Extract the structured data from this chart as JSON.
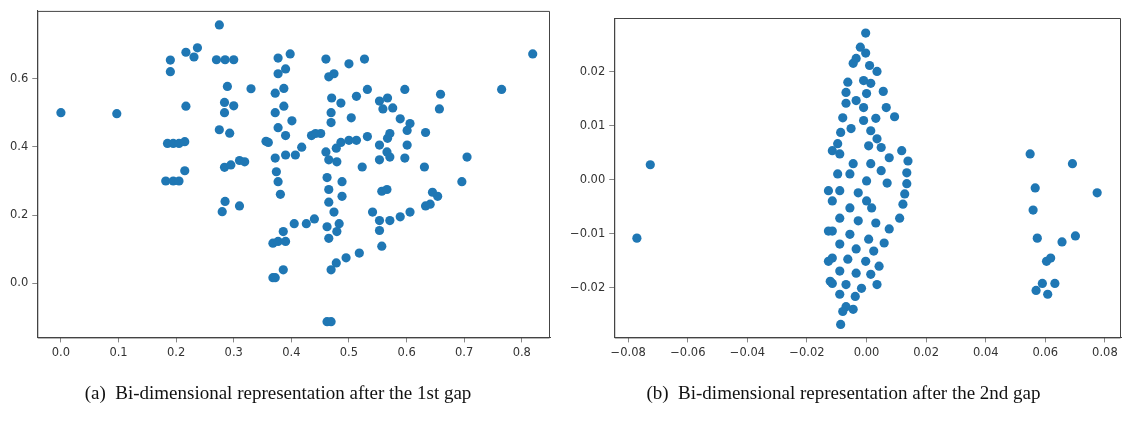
{
  "chart_data": [
    {
      "type": "scatter",
      "title": "(a)  Bi-dimensional representation after the 1st gap",
      "color": "#1f77b4",
      "marker": "circle",
      "grid": false,
      "x": [
        0,
        0.097,
        0.185,
        0.195,
        0.205,
        0.215,
        0.182,
        0.195,
        0.205,
        0.215,
        0.19,
        0.19,
        0.217,
        0.217,
        0.237,
        0.231,
        0.275,
        0.27,
        0.285,
        0.3,
        0.289,
        0.284,
        0.284,
        0.3,
        0.33,
        0.275,
        0.293,
        0.284,
        0.295,
        0.31,
        0.319,
        0.285,
        0.28,
        0.31,
        0.356,
        0.368,
        0.368,
        0.377,
        0.398,
        0.377,
        0.39,
        0.372,
        0.387,
        0.372,
        0.387,
        0.401,
        0.377,
        0.39,
        0.36,
        0.372,
        0.39,
        0.407,
        0.418,
        0.435,
        0.451,
        0.374,
        0.377,
        0.381,
        0.386,
        0.377,
        0.39,
        0.372,
        0.386,
        0.405,
        0.426,
        0.44,
        0.46,
        0.5,
        0.527,
        0.465,
        0.474,
        0.47,
        0.486,
        0.513,
        0.532,
        0.469,
        0.469,
        0.504,
        0.442,
        0.46,
        0.478,
        0.486,
        0.5,
        0.513,
        0.532,
        0.465,
        0.479,
        0.523,
        0.462,
        0.488,
        0.465,
        0.465,
        0.488,
        0.474,
        0.462,
        0.483,
        0.465,
        0.479,
        0.469,
        0.478,
        0.495,
        0.518,
        0.462,
        0.469,
        0.553,
        0.567,
        0.559,
        0.576,
        0.589,
        0.597,
        0.606,
        0.601,
        0.571,
        0.567,
        0.553,
        0.566,
        0.553,
        0.571,
        0.601,
        0.597,
        0.557,
        0.566,
        0.541,
        0.553,
        0.553,
        0.571,
        0.589,
        0.606,
        0.557,
        0.633,
        0.631,
        0.659,
        0.657,
        0.645,
        0.654,
        0.633,
        0.641,
        0.705,
        0.696,
        0.765,
        0.819
      ],
      "values": [
        0.5,
        0.497,
        0.41,
        0.41,
        0.41,
        0.415,
        0.3,
        0.3,
        0.3,
        0.33,
        0.62,
        0.654,
        0.519,
        0.677,
        0.69,
        0.663,
        0.757,
        0.655,
        0.655,
        0.655,
        0.577,
        0.53,
        0.5,
        0.52,
        0.57,
        0.45,
        0.44,
        0.34,
        0.347,
        0.36,
        0.356,
        0.24,
        0.21,
        0.227,
        0.416,
        0.118,
        0.017,
        0.66,
        0.672,
        0.614,
        0.628,
        0.557,
        0.571,
        0.5,
        0.519,
        0.476,
        0.456,
        0.433,
        0.413,
        0.367,
        0.376,
        0.376,
        0.399,
        0.433,
        0.439,
        0.327,
        0.298,
        0.261,
        0.152,
        0.123,
        0.123,
        0.017,
        0.04,
        0.175,
        0.175,
        0.189,
        0.657,
        0.643,
        0.657,
        0.605,
        0.614,
        0.543,
        0.528,
        0.548,
        0.568,
        0.5,
        0.471,
        0.485,
        0.439,
        0.385,
        0.396,
        0.413,
        0.419,
        0.419,
        0.43,
        0.362,
        0.356,
        0.341,
        0.31,
        0.298,
        0.275,
        0.238,
        0.255,
        0.209,
        0.166,
        0.175,
        0.132,
        0.152,
        0.04,
        0.06,
        0.075,
        0.089,
        -0.112,
        -0.112,
        0.534,
        0.543,
        0.511,
        0.514,
        0.482,
        0.568,
        0.468,
        0.448,
        0.439,
        0.425,
        0.405,
        0.385,
        0.362,
        0.37,
        0.405,
        0.367,
        0.27,
        0.275,
        0.209,
        0.184,
        0.155,
        0.184,
        0.195,
        0.209,
        0.109,
        0.442,
        0.341,
        0.554,
        0.511,
        0.267,
        0.255,
        0.227,
        0.232,
        0.37,
        0.298,
        0.568,
        0.672
      ],
      "xlim": [
        -0.041,
        0.849
      ],
      "ylim": [
        -0.158,
        0.798
      ],
      "xticks": [
        {
          "value": 0,
          "label": "0.0"
        },
        0.1,
        0.2,
        0.3,
        0.4,
        0.5,
        0.6,
        0.7,
        0.8
      ],
      "yticks": [
        {
          "value": 0,
          "label": "0.0"
        },
        0.2,
        0.4,
        0.6
      ]
    },
    {
      "type": "scatter",
      "title": "(b)  Bi-dimensional representation after the 2nd gap",
      "color": "#1f77b4",
      "marker": "circle",
      "grid": false,
      "x": [
        -0.0726,
        -0.0771,
        0.0549,
        0.0691,
        0.0774,
        0.0566,
        0.0559,
        0.0573,
        0.0656,
        0.0701,
        0.0604,
        0.0618,
        0.0569,
        0.059,
        0.0632,
        0.0608,
        -0.0003,
        -0.0021,
        -0.0003,
        -0.0045,
        -0.0035,
        0.001,
        0.0035,
        -0.0063,
        -0.001,
        0.0014,
        0.0056,
        -0.0069,
        0,
        -0.0069,
        -0.0035,
        0.0066,
        -0.001,
        -0.008,
        0.0094,
        -0.001,
        0.0031,
        -0.0087,
        -0.0052,
        0.0014,
        0.0035,
        0.0007,
        -0.0097,
        0.0049,
        0.0118,
        -0.009,
        0.0076,
        0.0139,
        -0.0045,
        0.0014,
        -0.0097,
        0.0049,
        0.0135,
        -0.0056,
        0,
        0.0069,
        0.0135,
        -0.009,
        -0.0028,
        0.0128,
        -0.0115,
        0,
        0.0122,
        -0.0056,
        0.0017,
        0.0111,
        -0.009,
        -0.0028,
        0.0031,
        0.0076,
        -0.0115,
        -0.0056,
        0.0007,
        0.0059,
        -0.009,
        -0.0035,
        0.0024,
        -0.0115,
        -0.0063,
        -0.0003,
        0.0042,
        -0.009,
        -0.0035,
        0.0014,
        0.0035,
        -0.0115,
        -0.0069,
        -0.0017,
        -0.009,
        -0.0038,
        -0.0069,
        -0.0045,
        -0.008,
        -0.0087,
        -0.0128,
        -0.0128,
        -0.0128,
        -0.0122,
        -0.0115
      ],
      "values": [
        0.0028,
        -0.0108,
        0.0048,
        0.003,
        -0.0024,
        -0.0015,
        -0.0056,
        -0.0108,
        -0.0115,
        -0.0104,
        -0.0151,
        -0.0145,
        -0.0205,
        -0.0192,
        -0.0192,
        -0.0212,
        0.0272,
        0.0246,
        0.0235,
        0.0216,
        0.0225,
        0.0212,
        0.0201,
        0.0181,
        0.0184,
        0.0179,
        0.0164,
        0.0162,
        0.016,
        0.0142,
        0.0147,
        0.0134,
        0.0134,
        0.0115,
        0.0117,
        0.011,
        0.0114,
        0.0088,
        0.0095,
        0.0091,
        0.0076,
        0.0063,
        0.0067,
        0.006,
        0.0054,
        0.0048,
        0.0041,
        0.0035,
        0.003,
        0.003,
        0.0011,
        0.0017,
        0.0013,
        0.0011,
        -0.0002,
        -0.0006,
        -0.0007,
        -0.002,
        -0.0024,
        -0.0026,
        -0.0039,
        -0.0039,
        -0.0045,
        -0.0052,
        -0.0052,
        -0.0071,
        -0.0071,
        -0.0076,
        -0.008,
        -0.0091,
        -0.0095,
        -0.0101,
        -0.011,
        -0.0117,
        -0.0119,
        -0.0128,
        -0.0132,
        -0.0145,
        -0.0147,
        -0.0151,
        -0.016,
        -0.0169,
        -0.0173,
        -0.0175,
        -0.0194,
        -0.0192,
        -0.0194,
        -0.0201,
        -0.0212,
        -0.0216,
        -0.0235,
        -0.024,
        -0.0244,
        -0.0268,
        -0.002,
        -0.0095,
        -0.0151,
        -0.0188,
        0.0054
      ],
      "xlim": [
        -0.0847,
        0.0854
      ],
      "ylim": [
        -0.0292,
        0.03
      ],
      "xticks": [
        {
          "value": -0.08,
          "label": "−0.08"
        },
        {
          "value": -0.06,
          "label": "−0.06"
        },
        {
          "value": -0.04,
          "label": "−0.04"
        },
        {
          "value": -0.02,
          "label": "−0.02"
        },
        {
          "value": 0,
          "label": "0.00"
        },
        {
          "value": 0.02,
          "label": "0.02"
        },
        {
          "value": 0.04,
          "label": "0.04"
        },
        {
          "value": 0.06,
          "label": "0.06"
        },
        {
          "value": 0.08,
          "label": "0.08"
        }
      ],
      "yticks": [
        {
          "value": -0.02,
          "label": "−0.02"
        },
        {
          "value": -0.01,
          "label": "−0.01"
        },
        {
          "value": 0,
          "label": "0.00"
        },
        {
          "value": 0.01,
          "label": "0.01"
        },
        {
          "value": 0.02,
          "label": "0.02"
        }
      ]
    }
  ]
}
